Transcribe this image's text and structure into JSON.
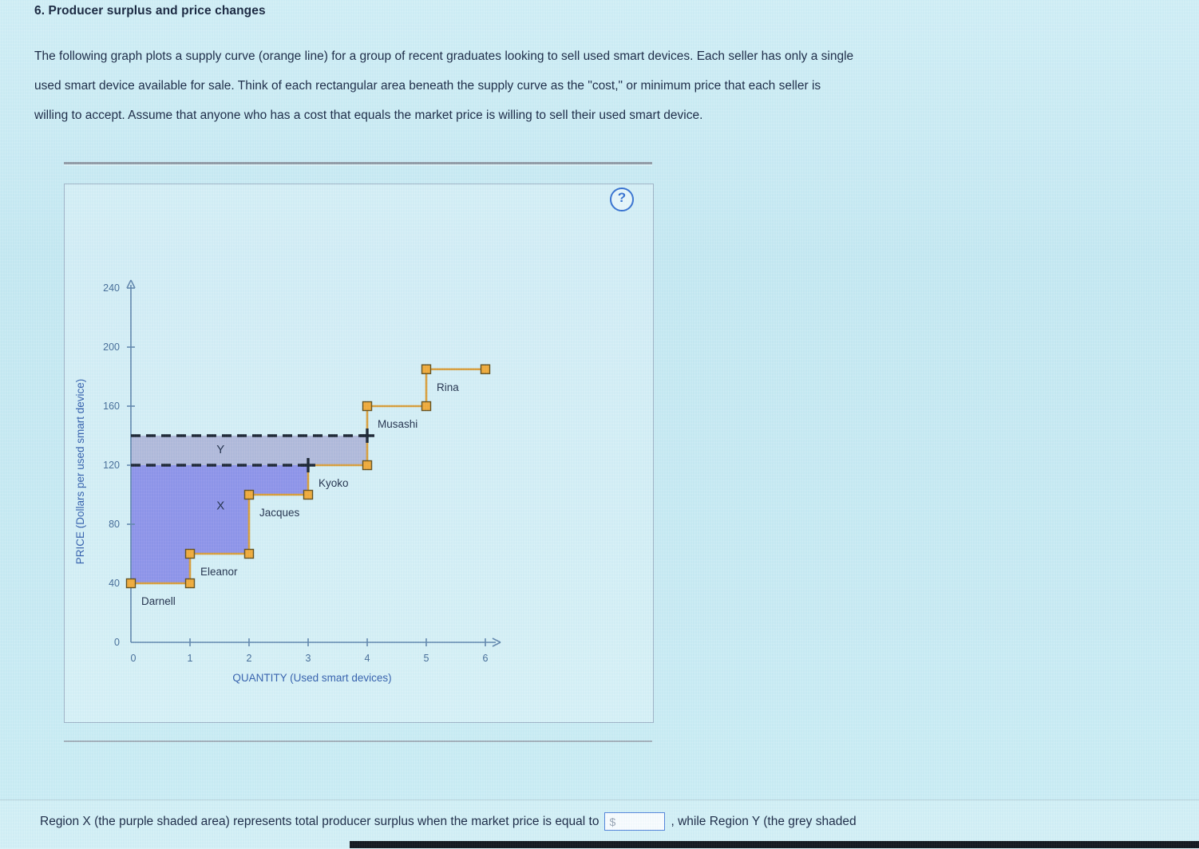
{
  "page": {
    "title": "6. Producer surplus and price changes",
    "intro_lines": [
      "The following graph plots a supply curve (orange line) for a group of recent graduates looking to sell used smart devices. Each seller has only a single",
      "used smart device available for sale. Think of each rectangular area beneath the supply curve as the \"cost,\" or minimum price that each seller is",
      "willing to accept. Assume that anyone who has a cost that equals the market price is willing to sell their used smart device."
    ],
    "help_icon": "?"
  },
  "chart_data": {
    "type": "step-supply",
    "xlabel": "QUANTITY (Used smart devices)",
    "ylabel": "PRICE (Dollars per used smart device)",
    "x_ticks": [
      0,
      1,
      2,
      3,
      4,
      5,
      6
    ],
    "y_ticks": [
      0,
      40,
      80,
      120,
      160,
      200,
      240
    ],
    "xlim": [
      0,
      6.6
    ],
    "ylim": [
      0,
      255
    ],
    "sellers": [
      {
        "name": "Darnell",
        "q_start": 0,
        "q_end": 1,
        "cost": 40
      },
      {
        "name": "Eleanor",
        "q_start": 1,
        "q_end": 2,
        "cost": 60
      },
      {
        "name": "Jacques",
        "q_start": 2,
        "q_end": 3,
        "cost": 100
      },
      {
        "name": "Kyoko",
        "q_start": 3,
        "q_end": 4,
        "cost": 120
      },
      {
        "name": "Musashi",
        "q_start": 4,
        "q_end": 5,
        "cost": 160
      },
      {
        "name": "Rina",
        "q_start": 5,
        "q_end": 6,
        "cost": 185
      }
    ],
    "price_lines": [
      {
        "price": 120,
        "q_end": 3
      },
      {
        "price": 140,
        "q_end": 4
      }
    ],
    "regions": {
      "x": {
        "label": "X",
        "price": 120,
        "color": "#8b8fe9",
        "label_pos": {
          "q": 1.45,
          "p": 90
        }
      },
      "y": {
        "label": "Y",
        "price_low": 120,
        "price_high": 140,
        "quantity": 4,
        "color": "#b0b7d9",
        "label_pos": {
          "q": 1.45,
          "p": 128
        }
      }
    },
    "colors": {
      "supply": "#d9992f",
      "handle_fill": "#f3a72e",
      "handle_stroke": "#5c450f",
      "dash": "#101826",
      "tick_label": "#3c6391",
      "seller_label": "#16233f",
      "axis_title": "#2b57a8",
      "axis": "#5b80a8"
    }
  },
  "answer": {
    "text_before": "Region X (the purple shaded area) represents total producer surplus when the market price is equal to",
    "input_prefix": "$",
    "text_after": ", while Region Y (the grey shaded"
  }
}
